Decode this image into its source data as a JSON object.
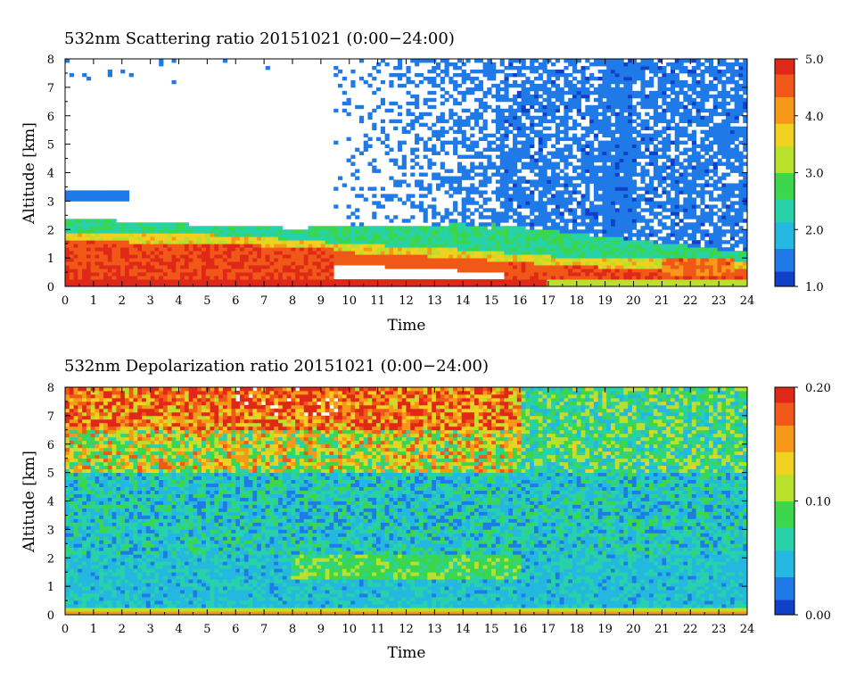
{
  "chart_data": [
    {
      "type": "heatmap",
      "title": "532nm Scattering ratio  20151021 (0:00−24:00)",
      "xlabel": "Time",
      "ylabel": "Altitude [km]",
      "xlim": [
        0,
        24
      ],
      "ylim": [
        0,
        8
      ],
      "x_ticks": [
        "0",
        "1",
        "2",
        "3",
        "4",
        "5",
        "6",
        "7",
        "8",
        "9",
        "10",
        "11",
        "12",
        "13",
        "14",
        "15",
        "16",
        "17",
        "18",
        "19",
        "20",
        "21",
        "22",
        "23",
        "24"
      ],
      "y_ticks": [
        "0",
        "1",
        "2",
        "3",
        "4",
        "5",
        "6",
        "7",
        "8"
      ],
      "colorbar": {
        "min": 1.0,
        "max": 5.0,
        "labels": [
          "1.0",
          "2.0",
          "3.0",
          "4.0",
          "5.0"
        ]
      },
      "features": {
        "cloud_layer_top_km": [
          [
            0,
            2.4
          ],
          [
            4,
            2.2
          ],
          [
            8,
            2.05
          ],
          [
            10,
            2.1
          ],
          [
            14,
            2.2
          ],
          [
            15,
            2.05
          ]
        ],
        "strong_aerosol_layer_km": [
          [
            0,
            1.6
          ],
          [
            6,
            1.5
          ],
          [
            10,
            1.2
          ],
          [
            14,
            1.0
          ],
          [
            18,
            0.7
          ],
          [
            24,
            0.6
          ]
        ],
        "near_surface_high_ratio_hours": [
          0,
          9.5
        ],
        "upper_scattered_cloud_hours": [
          12,
          24
        ]
      }
    },
    {
      "type": "heatmap",
      "title": "532nm Depolarization ratio  20151021 (0:00−24:00)",
      "xlabel": "Time",
      "ylabel": "Altitude [km]",
      "xlim": [
        0,
        24
      ],
      "ylim": [
        0,
        8
      ],
      "x_ticks": [
        "0",
        "1",
        "2",
        "3",
        "4",
        "5",
        "6",
        "7",
        "8",
        "9",
        "10",
        "11",
        "12",
        "13",
        "14",
        "15",
        "16",
        "17",
        "18",
        "19",
        "20",
        "21",
        "22",
        "23",
        "24"
      ],
      "y_ticks": [
        "0",
        "1",
        "2",
        "3",
        "4",
        "5",
        "6",
        "7",
        "8"
      ],
      "colorbar": {
        "min": 0.0,
        "max": 0.2,
        "labels": [
          "0.00",
          "0.10",
          "0.20"
        ]
      },
      "features": {
        "high_depolarization_region_km": [
          5,
          8
        ],
        "high_depolarization_hours": [
          0,
          16
        ],
        "mid_layer_km": [
          1.3,
          2.1
        ],
        "surface_layer_km": [
          0,
          0.2
        ]
      }
    }
  ],
  "colors": {
    "palette": [
      "#1040c8",
      "#1f7ae8",
      "#24b8e0",
      "#28d2a8",
      "#3cd64c",
      "#b8e02c",
      "#f0d020",
      "#f89818",
      "#f05818",
      "#e02818"
    ]
  }
}
